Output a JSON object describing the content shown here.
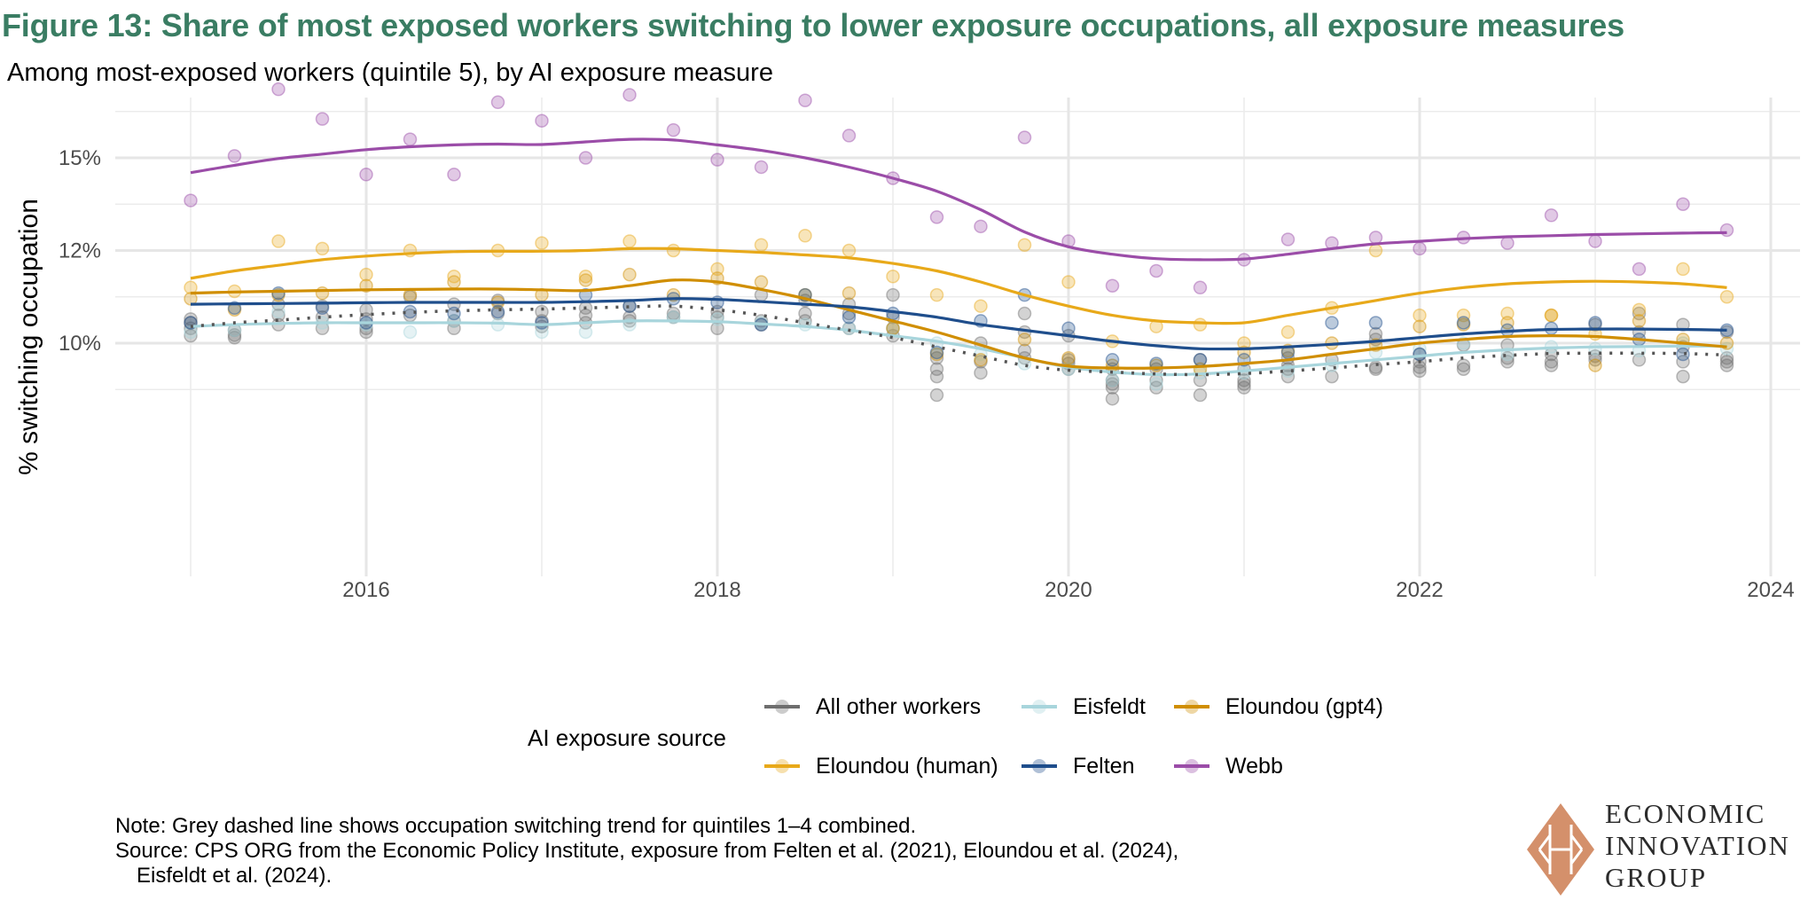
{
  "header": {
    "title": "Figure 13: Share of most exposed workers switching to lower exposure occupations, all exposure measures",
    "subtitle": "Among most-exposed workers (quintile 5), by AI exposure measure"
  },
  "chart_data": {
    "type": "scatter",
    "title": "Figure 13: Share of most exposed workers switching to lower exposure occupations, all exposure measures",
    "subtitle": "Among most-exposed workers (quintile 5), by AI exposure measure",
    "xlabel": "",
    "ylabel": "% switching occupation",
    "xlim": [
      2014.85,
      2024.2
    ],
    "ylim": [
      7.7,
      16.9
    ],
    "x_ticks": [
      2016,
      2018,
      2020,
      2022,
      2024
    ],
    "x_tick_labels": [
      "2016",
      "2018",
      "2020",
      "2022",
      "2024"
    ],
    "y_ticks": [
      10,
      12.5,
      15
    ],
    "y_tick_labels": [
      "10%",
      "12%",
      "15%"
    ],
    "y_minor_ticks": [
      8.75,
      11.25,
      13.75,
      16.25
    ],
    "grid": true,
    "legend_title": "AI exposure source",
    "legend_position": "bottom",
    "x": [
      2015.0,
      2015.25,
      2015.5,
      2015.75,
      2016.0,
      2016.25,
      2016.5,
      2016.75,
      2017.0,
      2017.25,
      2017.5,
      2017.75,
      2018.0,
      2018.25,
      2018.5,
      2018.75,
      2019.0,
      2019.25,
      2019.5,
      2019.75,
      2020.0,
      2020.25,
      2020.5,
      2020.75,
      2021.0,
      2021.25,
      2021.5,
      2021.75,
      2022.0,
      2022.25,
      2022.5,
      2022.75,
      2023.0,
      2023.25,
      2023.5,
      2023.75
    ],
    "series": [
      {
        "name": "All other workers",
        "color": "#6e6e6e",
        "line_style": "none",
        "points": [
          [
            10.65,
            10.55,
            10.4,
            10.2
          ],
          [
            10.35,
            10.22,
            10.15
          ],
          [
            11.05,
            10.75,
            10.5
          ],
          [
            11.0,
            10.7,
            10.4
          ],
          [
            10.9,
            10.65,
            10.4,
            10.3
          ],
          [
            11.25,
            10.75
          ],
          [
            11.05,
            10.6,
            10.4
          ],
          [
            11.15,
            10.8
          ],
          [
            10.85,
            10.6,
            10.45
          ],
          [
            10.95,
            10.75,
            10.55
          ],
          [
            11.0,
            10.7,
            10.6
          ],
          [
            10.8,
            10.7
          ],
          [
            10.85,
            10.7,
            10.4
          ],
          [
            11.3,
            10.6,
            10.5
          ],
          [
            11.15,
            10.8,
            10.6
          ],
          [
            11.05,
            10.8,
            10.4
          ],
          [
            11.3,
            10.7,
            10.4,
            10.2
          ],
          [
            9.6,
            9.3,
            9.1,
            8.6
          ],
          [
            10.0,
            9.5,
            9.2
          ],
          [
            10.8,
            10.3,
            9.8,
            9.6
          ],
          [
            10.2,
            9.55,
            9.45,
            9.3
          ],
          [
            9.3,
            9.0,
            8.9,
            8.8,
            8.5
          ],
          [
            9.3,
            9.0,
            8.8
          ],
          [
            9.55,
            9.0,
            8.6
          ],
          [
            9.3,
            9.0,
            8.9,
            8.8
          ],
          [
            9.6,
            9.4,
            9.3,
            9.1
          ],
          [
            9.55,
            9.1
          ],
          [
            10.25,
            10.1,
            9.35,
            9.3
          ],
          [
            9.7,
            9.5,
            9.35,
            9.25
          ],
          [
            9.95,
            9.4,
            9.3
          ],
          [
            9.95,
            9.6,
            9.5
          ],
          [
            9.7,
            9.5,
            9.4
          ],
          [
            10.5,
            9.65,
            9.55
          ],
          [
            10.8,
            10.3,
            9.55
          ],
          [
            10.5,
            9.9,
            9.5,
            9.1
          ],
          [
            10.3,
            9.6,
            9.5,
            9.4
          ]
        ],
        "trend": null
      },
      {
        "name": "Eisfeldt",
        "color": "#a8d5dc",
        "points": [
          10.3,
          10.35,
          10.85,
          10.55,
          10.5,
          10.3,
          10.6,
          10.5,
          10.3,
          10.3,
          10.5,
          10.7,
          10.65,
          10.55,
          10.5,
          10.4,
          10.4,
          10.0,
          9.7,
          9.45,
          9.3,
          9.0,
          8.9,
          9.2,
          9.2,
          9.25,
          9.4,
          9.75,
          9.85,
          10.0,
          9.7,
          9.9,
          9.85,
          9.8,
          10.0,
          9.85
        ],
        "trend": [
          10.45,
          10.5,
          10.53,
          10.55,
          10.55,
          10.55,
          10.55,
          10.54,
          10.5,
          10.55,
          10.6,
          10.6,
          10.58,
          10.52,
          10.45,
          10.35,
          10.2,
          10.05,
          9.85,
          9.6,
          9.35,
          9.22,
          9.15,
          9.17,
          9.25,
          9.35,
          9.45,
          9.55,
          9.65,
          9.75,
          9.82,
          9.87,
          9.9,
          9.91,
          9.92,
          9.92
        ]
      },
      {
        "name": "Eloundou (gpt4)",
        "color": "#d08e00",
        "points": [
          11.2,
          10.9,
          11.3,
          11.35,
          11.55,
          11.3,
          11.65,
          11.1,
          11.3,
          11.7,
          11.85,
          11.3,
          11.75,
          11.65,
          11.3,
          11.35,
          10.4,
          9.7,
          9.55,
          10.1,
          9.6,
          9.4,
          9.4,
          9.3,
          9.75,
          9.8,
          10.0,
          9.95,
          10.45,
          10.5,
          10.55,
          10.75,
          9.4,
          10.6,
          10.1,
          10.0
        ],
        "trend": [
          11.35,
          11.38,
          11.4,
          11.42,
          11.44,
          11.45,
          11.46,
          11.46,
          11.44,
          11.42,
          11.55,
          11.7,
          11.65,
          11.45,
          11.2,
          10.9,
          10.6,
          10.3,
          9.95,
          9.6,
          9.38,
          9.33,
          9.33,
          9.37,
          9.45,
          9.55,
          9.7,
          9.85,
          10.0,
          10.1,
          10.18,
          10.2,
          10.18,
          10.1,
          10.0,
          9.9
        ]
      },
      {
        "name": "Eloundou (human)",
        "color": "#e8a91a",
        "points": [
          11.5,
          11.4,
          12.75,
          12.55,
          11.85,
          12.5,
          11.8,
          12.5,
          12.7,
          11.8,
          12.75,
          12.5,
          12.0,
          12.65,
          12.9,
          12.5,
          11.8,
          11.3,
          11.0,
          12.65,
          11.65,
          10.05,
          10.45,
          10.5,
          10.0,
          10.3,
          10.95,
          12.5,
          10.75,
          10.75,
          10.8,
          10.75,
          10.25,
          10.9,
          12.0,
          11.25
        ],
        "trend": [
          11.75,
          11.95,
          12.1,
          12.25,
          12.35,
          12.42,
          12.47,
          12.48,
          12.48,
          12.5,
          12.55,
          12.55,
          12.5,
          12.45,
          12.38,
          12.3,
          12.15,
          11.95,
          11.65,
          11.3,
          11.0,
          10.75,
          10.6,
          10.55,
          10.55,
          10.75,
          10.95,
          11.15,
          11.35,
          11.5,
          11.6,
          11.65,
          11.67,
          11.65,
          11.6,
          11.5
        ]
      },
      {
        "name": "Felten",
        "color": "#1f4e8c",
        "points": [
          10.55,
          10.95,
          11.35,
          10.95,
          10.55,
          10.85,
          10.8,
          10.85,
          10.55,
          11.3,
          11.0,
          11.2,
          11.1,
          10.5,
          11.3,
          10.7,
          10.8,
          9.75,
          10.6,
          11.3,
          10.4,
          9.55,
          9.45,
          9.55,
          9.55,
          9.75,
          10.55,
          10.55,
          9.7,
          10.55,
          10.35,
          10.4,
          10.55,
          10.1,
          9.7,
          10.35
        ],
        "trend": [
          11.05,
          11.06,
          11.07,
          11.08,
          11.09,
          11.1,
          11.1,
          11.1,
          11.1,
          11.12,
          11.15,
          11.2,
          11.18,
          11.12,
          11.05,
          10.98,
          10.85,
          10.7,
          10.5,
          10.35,
          10.2,
          10.05,
          9.93,
          9.85,
          9.85,
          9.9,
          9.97,
          10.05,
          10.15,
          10.25,
          10.32,
          10.37,
          10.38,
          10.38,
          10.37,
          10.35
        ]
      },
      {
        "name": "Webb",
        "color": "#9b4da8",
        "points": [
          13.85,
          15.05,
          16.85,
          16.05,
          14.55,
          15.5,
          14.55,
          16.5,
          16.0,
          15.0,
          16.7,
          15.75,
          14.95,
          14.75,
          16.55,
          15.6,
          14.45,
          13.4,
          13.15,
          15.55,
          12.75,
          11.55,
          11.95,
          11.5,
          12.25,
          12.8,
          12.7,
          12.85,
          12.55,
          12.85,
          12.7,
          13.45,
          12.75,
          12.0,
          13.75,
          13.05
        ],
        "trend": [
          14.6,
          14.8,
          14.98,
          15.1,
          15.22,
          15.3,
          15.35,
          15.37,
          15.36,
          15.43,
          15.5,
          15.48,
          15.35,
          15.2,
          15.0,
          14.75,
          14.45,
          14.1,
          13.6,
          13.0,
          12.6,
          12.4,
          12.28,
          12.25,
          12.27,
          12.4,
          12.55,
          12.68,
          12.75,
          12.82,
          12.87,
          12.9,
          12.93,
          12.95,
          12.97,
          12.98
        ]
      },
      {
        "name": "Quintiles 1-4 combined (trend)",
        "color": "#555555",
        "line_style": "dotted",
        "points": [],
        "trend": [
          10.45,
          10.55,
          10.62,
          10.7,
          10.77,
          10.83,
          10.87,
          10.9,
          10.92,
          10.95,
          10.98,
          11.0,
          10.9,
          10.75,
          10.55,
          10.35,
          10.15,
          9.9,
          9.65,
          9.4,
          9.27,
          9.22,
          9.17,
          9.15,
          9.18,
          9.25,
          9.33,
          9.42,
          9.5,
          9.6,
          9.67,
          9.72,
          9.73,
          9.73,
          9.72,
          9.68
        ]
      }
    ],
    "legend": [
      {
        "label": "All other workers",
        "color": "#6e6e6e"
      },
      {
        "label": "Eisfeldt",
        "color": "#a8d5dc"
      },
      {
        "label": "Eloundou (gpt4)",
        "color": "#d08e00"
      },
      {
        "label": "Eloundou (human)",
        "color": "#e8a91a"
      },
      {
        "label": "Felten",
        "color": "#1f4e8c"
      },
      {
        "label": "Webb",
        "color": "#9b4da8"
      }
    ],
    "notes": [
      "Note: Grey dashed line shows occupation switching trend for quintiles 1–4 combined.",
      "Source: CPS ORG from the Economic Policy Institute, exposure from Felten et al. (2021), Eloundou et al. (2024),",
      "Eisfeldt et al. (2024)."
    ]
  },
  "footer": {
    "note_line": "Note: Grey dashed line shows occupation switching trend for quintiles 1–4 combined.",
    "source_line1": "Source: CPS ORG from the Economic Policy Institute, exposure from Felten et al. (2021), Eloundou et al. (2024),",
    "source_line2": "Eisfeldt et al. (2024)."
  },
  "logo": {
    "line1": "ECONOMIC",
    "line2": "INNOVATION",
    "line3": "GROUP",
    "color": "#d4906b"
  }
}
